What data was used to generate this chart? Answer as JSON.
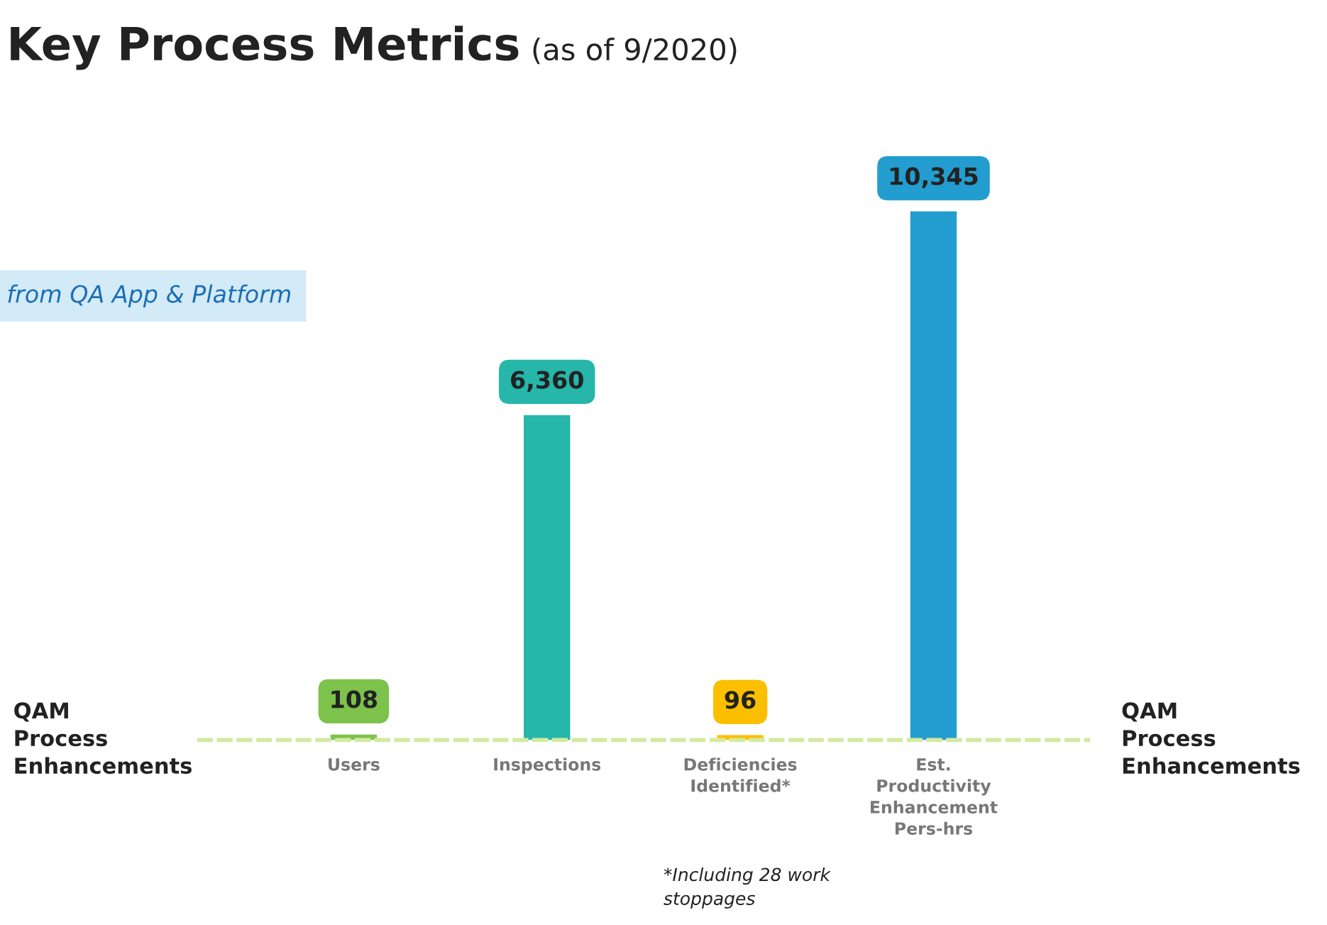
{
  "chart_data": {
    "type": "bar",
    "title": "Key Process Metrics",
    "subtitle": "(as of 9/2020)",
    "categories": [
      "Users",
      "Inspections",
      "Deficiencies\nIdentified*",
      "Est.\nProductivity\nEnhancement\nPers-hrs"
    ],
    "values": [
      108,
      6360,
      96,
      10345
    ],
    "colors": [
      "#7dc24b",
      "#26b6aa",
      "#fbbf00",
      "#239dcf"
    ],
    "value_labels": [
      "108",
      "6,360",
      "96",
      "10,345"
    ],
    "grid": false,
    "legend": false,
    "annotations": [
      "from QA App & Platform",
      "QAM\nProcess\nEnhancements",
      "QAM\nProcess\nEnhancements",
      "*Including 28 work\nstoppages"
    ]
  }
}
